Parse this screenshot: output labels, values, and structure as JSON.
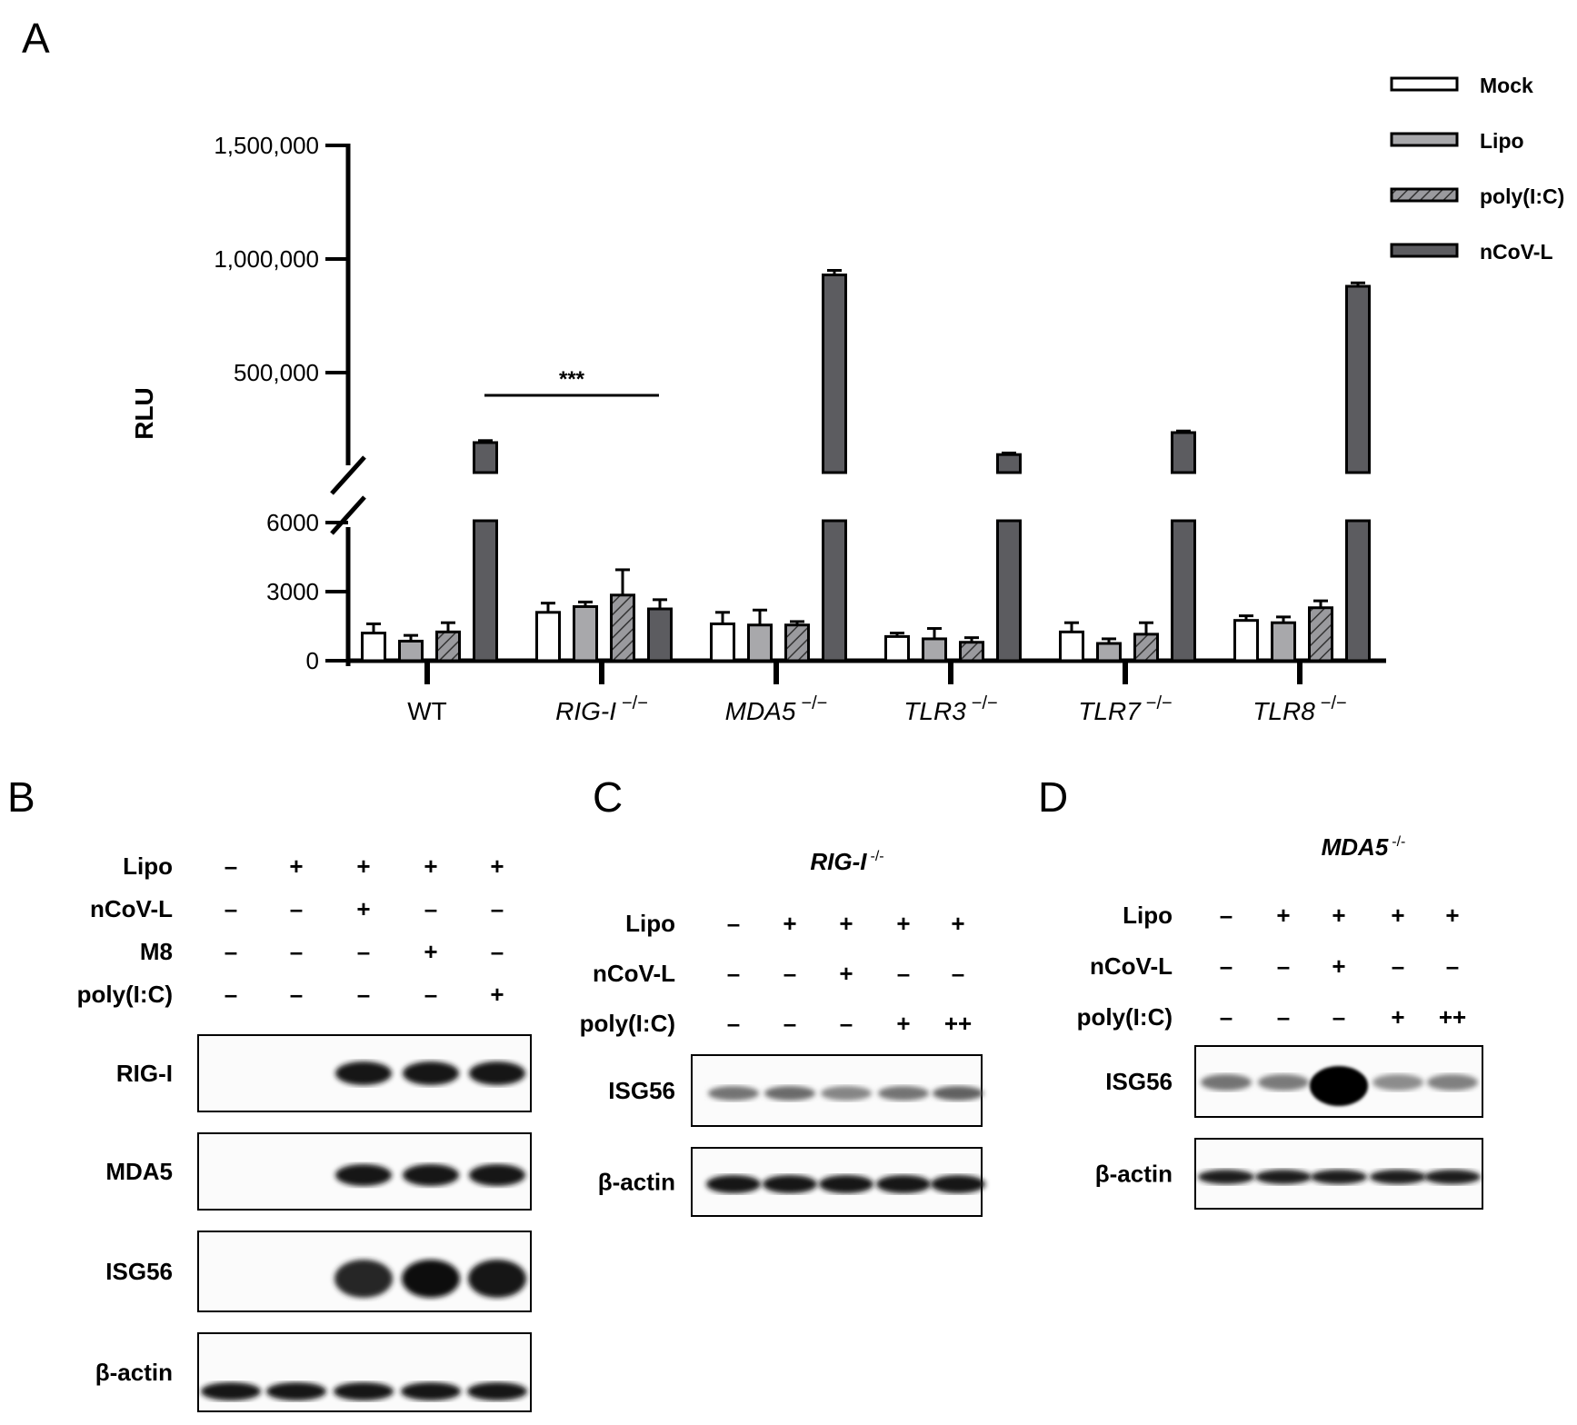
{
  "panel_labels": {
    "a": "A",
    "b": "B",
    "c": "C",
    "d": "D"
  },
  "chart_data": {
    "type": "bar",
    "ylabel": "RLU",
    "y_scale": "broken",
    "ylim_lower": [
      0,
      6000
    ],
    "ylim_upper": [
      0,
      1500000
    ],
    "yticks_lower": [
      "0",
      "3000",
      "6000"
    ],
    "yticks_upper": [
      "500,000",
      "1,000,000",
      "1,500,000"
    ],
    "categories": [
      {
        "name": "WT",
        "sup": ""
      },
      {
        "name": "RIG-I",
        "sup": "−/−"
      },
      {
        "name": "MDA5",
        "sup": "−/−"
      },
      {
        "name": "TLR3",
        "sup": "−/−"
      },
      {
        "name": "TLR7",
        "sup": "−/−"
      },
      {
        "name": "TLR8",
        "sup": "−/−"
      }
    ],
    "series": [
      {
        "name": "Mock",
        "color": "#ffffff",
        "pattern": "solid",
        "values": [
          1200,
          2100,
          1600,
          1050,
          1250,
          1750
        ],
        "errors": [
          400,
          400,
          500,
          150,
          400,
          200
        ]
      },
      {
        "name": "Lipo",
        "color": "#a8a8ab",
        "pattern": "solid",
        "values": [
          850,
          2350,
          1550,
          950,
          750,
          1650
        ],
        "errors": [
          250,
          200,
          650,
          450,
          200,
          250
        ]
      },
      {
        "name": "poly(I:C)",
        "color": "#9a9a9e",
        "pattern": "hatched",
        "values": [
          1250,
          2850,
          1550,
          800,
          1150,
          2300
        ],
        "errors": [
          400,
          1100,
          150,
          200,
          500,
          300
        ]
      },
      {
        "name": "nCoV-L",
        "color": "#5c5c60",
        "pattern": "solid",
        "values": [
          150000,
          2250,
          930000,
          90000,
          200000,
          880000
        ],
        "errors": [
          10000,
          400,
          20000,
          8000,
          8000,
          15000
        ]
      }
    ],
    "annotations": [
      {
        "text": "***",
        "between": [
          "WT",
          "RIG-I"
        ]
      }
    ]
  },
  "blot_b": {
    "rows": [
      {
        "label": "Lipo",
        "values": [
          "–",
          "+",
          "+",
          "+",
          "+"
        ]
      },
      {
        "label": "nCoV-L",
        "values": [
          "–",
          "–",
          "+",
          "–",
          "–"
        ]
      },
      {
        "label": "M8",
        "values": [
          "–",
          "–",
          "–",
          "+",
          "–"
        ]
      },
      {
        "label": "poly(I:C)",
        "values": [
          "–",
          "–",
          "–",
          "–",
          "+"
        ]
      }
    ],
    "blots": [
      "RIG-I",
      "MDA5",
      "ISG56",
      "β-actin"
    ]
  },
  "blot_c": {
    "title": "RIG-I",
    "title_sup": "-/-",
    "rows": [
      {
        "label": "Lipo",
        "values": [
          "–",
          "+",
          "+",
          "+",
          "+"
        ]
      },
      {
        "label": "nCoV-L",
        "values": [
          "–",
          "–",
          "+",
          "–",
          "–"
        ]
      },
      {
        "label": "poly(I:C)",
        "values": [
          "–",
          "–",
          "–",
          "+",
          "++"
        ]
      }
    ],
    "blots": [
      "ISG56",
      "β-actin"
    ]
  },
  "blot_d": {
    "title": "MDA5",
    "title_sup": "-/-",
    "rows": [
      {
        "label": "Lipo",
        "values": [
          "–",
          "+",
          "+",
          "+",
          "+"
        ]
      },
      {
        "label": "nCoV-L",
        "values": [
          "–",
          "–",
          "+",
          "–",
          "–"
        ]
      },
      {
        "label": "poly(I:C)",
        "values": [
          "–",
          "–",
          "–",
          "+",
          "++"
        ]
      }
    ],
    "blots": [
      "ISG56",
      "β-actin"
    ]
  }
}
